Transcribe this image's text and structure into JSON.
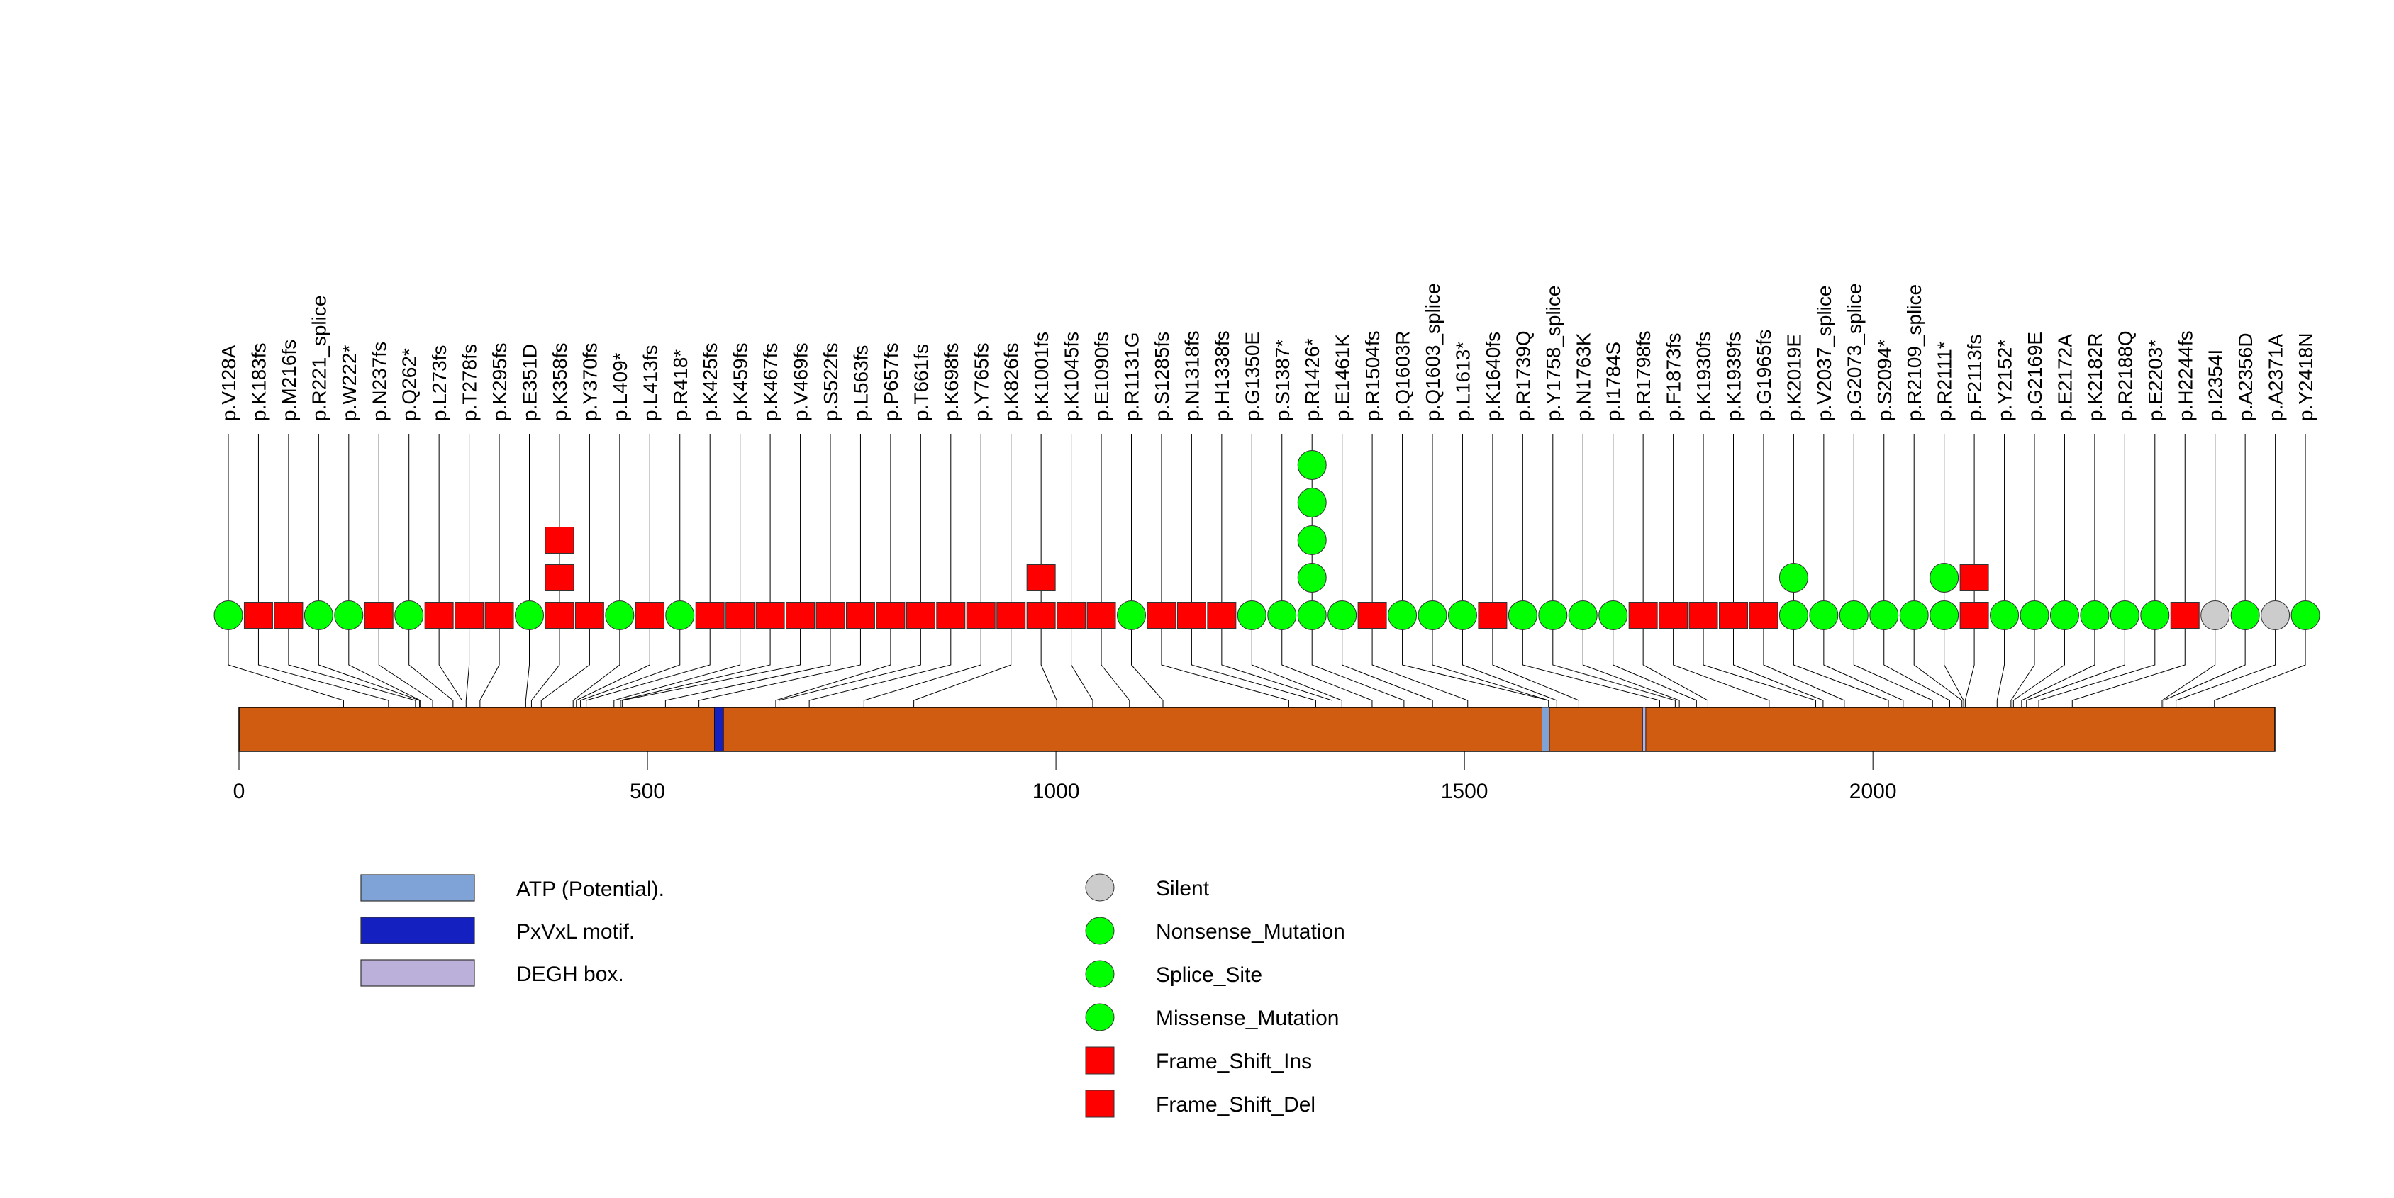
{
  "chart_data": {
    "type": "lollipop",
    "title": "",
    "protein_length": 2492,
    "xlim": [
      0,
      2492
    ],
    "x_ticks": [
      0,
      500,
      1000,
      1500,
      2000
    ],
    "x_tick_labels": [
      "0",
      "500",
      "1000",
      "1500",
      "2000"
    ],
    "domains": [
      {
        "name": "PxVxL motif.",
        "start": 582,
        "end": 593,
        "color": "#1520C0"
      },
      {
        "name": "ATP (Potential).",
        "start": 1595,
        "end": 1604,
        "color": "#7FA3D6"
      },
      {
        "name": "DEGH box.",
        "start": 1718,
        "end": 1722,
        "color": "#BBB0DA"
      }
    ],
    "protein_color": "#D05C12",
    "mutation_types": {
      "Silent": {
        "shape": "circle",
        "color": "#CCCCCC"
      },
      "Nonsense_Mutation": {
        "shape": "circle",
        "color": "#00FF00"
      },
      "Splice_Site": {
        "shape": "circle",
        "color": "#00FF00"
      },
      "Missense_Mutation": {
        "shape": "circle",
        "color": "#00FF00"
      },
      "Frame_Shift_Ins": {
        "shape": "square",
        "color": "#FF0000"
      },
      "Frame_Shift_Del": {
        "shape": "square",
        "color": "#FF0000"
      }
    },
    "mutations": [
      {
        "label": "p.V128A",
        "pos": 128,
        "type": "Missense_Mutation",
        "count": 1
      },
      {
        "label": "p.K183fs",
        "pos": 183,
        "type": "Frame_Shift_Del",
        "count": 1
      },
      {
        "label": "p.M216fs",
        "pos": 216,
        "type": "Frame_Shift_Del",
        "count": 1
      },
      {
        "label": "p.R221_splice",
        "pos": 221,
        "type": "Splice_Site",
        "count": 1
      },
      {
        "label": "p.W222*",
        "pos": 222,
        "type": "Nonsense_Mutation",
        "count": 1
      },
      {
        "label": "p.N237fs",
        "pos": 237,
        "type": "Frame_Shift_Del",
        "count": 1
      },
      {
        "label": "p.Q262*",
        "pos": 262,
        "type": "Nonsense_Mutation",
        "count": 1
      },
      {
        "label": "p.L273fs",
        "pos": 273,
        "type": "Frame_Shift_Del",
        "count": 1
      },
      {
        "label": "p.T278fs",
        "pos": 278,
        "type": "Frame_Shift_Del",
        "count": 1
      },
      {
        "label": "p.K295fs",
        "pos": 295,
        "type": "Frame_Shift_Del",
        "count": 1
      },
      {
        "label": "p.E351D",
        "pos": 351,
        "type": "Missense_Mutation",
        "count": 1
      },
      {
        "label": "p.K358fs",
        "pos": 358,
        "type": "Frame_Shift_Del",
        "count": 3
      },
      {
        "label": "p.Y370fs",
        "pos": 370,
        "type": "Frame_Shift_Del",
        "count": 1
      },
      {
        "label": "p.L409*",
        "pos": 409,
        "type": "Nonsense_Mutation",
        "count": 1
      },
      {
        "label": "p.L413fs",
        "pos": 413,
        "type": "Frame_Shift_Del",
        "count": 1
      },
      {
        "label": "p.R418*",
        "pos": 418,
        "type": "Nonsense_Mutation",
        "count": 1
      },
      {
        "label": "p.K425fs",
        "pos": 425,
        "type": "Frame_Shift_Del",
        "count": 1
      },
      {
        "label": "p.K459fs",
        "pos": 459,
        "type": "Frame_Shift_Del",
        "count": 1
      },
      {
        "label": "p.K467fs",
        "pos": 467,
        "type": "Frame_Shift_Del",
        "count": 1
      },
      {
        "label": "p.V469fs",
        "pos": 469,
        "type": "Frame_Shift_Del",
        "count": 1
      },
      {
        "label": "p.S522fs",
        "pos": 522,
        "type": "Frame_Shift_Del",
        "count": 1
      },
      {
        "label": "p.L563fs",
        "pos": 563,
        "type": "Frame_Shift_Del",
        "count": 1
      },
      {
        "label": "p.P657fs",
        "pos": 657,
        "type": "Frame_Shift_Del",
        "count": 1
      },
      {
        "label": "p.T661fs",
        "pos": 661,
        "type": "Frame_Shift_Del",
        "count": 1
      },
      {
        "label": "p.K698fs",
        "pos": 698,
        "type": "Frame_Shift_Del",
        "count": 1
      },
      {
        "label": "p.Y765fs",
        "pos": 765,
        "type": "Frame_Shift_Del",
        "count": 1
      },
      {
        "label": "p.K826fs",
        "pos": 826,
        "type": "Frame_Shift_Del",
        "count": 1
      },
      {
        "label": "p.K1001fs",
        "pos": 1001,
        "type": "Frame_Shift_Del",
        "count": 2
      },
      {
        "label": "p.K1045fs",
        "pos": 1045,
        "type": "Frame_Shift_Del",
        "count": 1
      },
      {
        "label": "p.E1090fs",
        "pos": 1090,
        "type": "Frame_Shift_Del",
        "count": 1
      },
      {
        "label": "p.R1131G",
        "pos": 1131,
        "type": "Missense_Mutation",
        "count": 1
      },
      {
        "label": "p.S1285fs",
        "pos": 1285,
        "type": "Frame_Shift_Del",
        "count": 1
      },
      {
        "label": "p.N1318fs",
        "pos": 1318,
        "type": "Frame_Shift_Del",
        "count": 1
      },
      {
        "label": "p.H1338fs",
        "pos": 1338,
        "type": "Frame_Shift_Del",
        "count": 1
      },
      {
        "label": "p.G1350E",
        "pos": 1350,
        "type": "Missense_Mutation",
        "count": 1
      },
      {
        "label": "p.S1387*",
        "pos": 1387,
        "type": "Nonsense_Mutation",
        "count": 1
      },
      {
        "label": "p.R1426*",
        "pos": 1426,
        "type": "Nonsense_Mutation",
        "count": 5
      },
      {
        "label": "p.E1461K",
        "pos": 1461,
        "type": "Missense_Mutation",
        "count": 1
      },
      {
        "label": "p.R1504fs",
        "pos": 1504,
        "type": "Frame_Shift_Del",
        "count": 1
      },
      {
        "label": "p.Q1603R",
        "pos": 1603,
        "type": "Missense_Mutation",
        "count": 1
      },
      {
        "label": "p.Q1603_splice",
        "pos": 1603,
        "type": "Splice_Site",
        "count": 1
      },
      {
        "label": "p.L1613*",
        "pos": 1613,
        "type": "Nonsense_Mutation",
        "count": 1
      },
      {
        "label": "p.K1640fs",
        "pos": 1640,
        "type": "Frame_Shift_Del",
        "count": 1
      },
      {
        "label": "p.R1739Q",
        "pos": 1739,
        "type": "Missense_Mutation",
        "count": 1
      },
      {
        "label": "p.Y1758_splice",
        "pos": 1758,
        "type": "Splice_Site",
        "count": 1
      },
      {
        "label": "p.N1763K",
        "pos": 1763,
        "type": "Missense_Mutation",
        "count": 1
      },
      {
        "label": "p.I1784S",
        "pos": 1784,
        "type": "Missense_Mutation",
        "count": 1
      },
      {
        "label": "p.R1798fs",
        "pos": 1798,
        "type": "Frame_Shift_Del",
        "count": 1
      },
      {
        "label": "p.F1873fs",
        "pos": 1873,
        "type": "Frame_Shift_Del",
        "count": 1
      },
      {
        "label": "p.K1930fs",
        "pos": 1930,
        "type": "Frame_Shift_Del",
        "count": 1
      },
      {
        "label": "p.K1939fs",
        "pos": 1939,
        "type": "Frame_Shift_Del",
        "count": 1
      },
      {
        "label": "p.G1965fs",
        "pos": 1965,
        "type": "Frame_Shift_Del",
        "count": 1
      },
      {
        "label": "p.K2019E",
        "pos": 2019,
        "type": "Missense_Mutation",
        "count": 2
      },
      {
        "label": "p.V2037_splice",
        "pos": 2037,
        "type": "Splice_Site",
        "count": 1
      },
      {
        "label": "p.G2073_splice",
        "pos": 2073,
        "type": "Splice_Site",
        "count": 1
      },
      {
        "label": "p.S2094*",
        "pos": 2094,
        "type": "Nonsense_Mutation",
        "count": 1
      },
      {
        "label": "p.R2109_splice",
        "pos": 2109,
        "type": "Splice_Site",
        "count": 1
      },
      {
        "label": "p.R2111*",
        "pos": 2111,
        "type": "Nonsense_Mutation",
        "count": 2
      },
      {
        "label": "p.F2113fs",
        "pos": 2113,
        "type": "Frame_Shift_Del",
        "count": 2
      },
      {
        "label": "p.Y2152*",
        "pos": 2152,
        "type": "Nonsense_Mutation",
        "count": 1
      },
      {
        "label": "p.G2169E",
        "pos": 2169,
        "type": "Missense_Mutation",
        "count": 1
      },
      {
        "label": "p.E2172A",
        "pos": 2172,
        "type": "Missense_Mutation",
        "count": 1
      },
      {
        "label": "p.K2182R",
        "pos": 2182,
        "type": "Missense_Mutation",
        "count": 1
      },
      {
        "label": "p.R2188Q",
        "pos": 2188,
        "type": "Missense_Mutation",
        "count": 1
      },
      {
        "label": "p.E2203*",
        "pos": 2203,
        "type": "Nonsense_Mutation",
        "count": 1
      },
      {
        "label": "p.H2244fs",
        "pos": 2244,
        "type": "Frame_Shift_Del",
        "count": 1
      },
      {
        "label": "p.I2354I",
        "pos": 2354,
        "type": "Silent",
        "count": 1
      },
      {
        "label": "p.A2356D",
        "pos": 2356,
        "type": "Missense_Mutation",
        "count": 1
      },
      {
        "label": "p.A2371A",
        "pos": 2371,
        "type": "Silent",
        "count": 1
      },
      {
        "label": "p.Y2418N",
        "pos": 2418,
        "type": "Missense_Mutation",
        "count": 1
      }
    ],
    "legend_domains": [
      {
        "label": "ATP (Potential).",
        "color": "#7FA3D6"
      },
      {
        "label": "PxVxL motif.",
        "color": "#1520C0"
      },
      {
        "label": "DEGH box.",
        "color": "#BBB0DA"
      }
    ],
    "legend_mutations": [
      {
        "label": "Silent",
        "shape": "circle",
        "color": "#CCCCCC"
      },
      {
        "label": "Nonsense_Mutation",
        "shape": "circle",
        "color": "#00FF00"
      },
      {
        "label": "Splice_Site",
        "shape": "circle",
        "color": "#00FF00"
      },
      {
        "label": "Missense_Mutation",
        "shape": "circle",
        "color": "#00FF00"
      },
      {
        "label": "Frame_Shift_Ins",
        "shape": "square",
        "color": "#FF0000"
      },
      {
        "label": "Frame_Shift_Del",
        "shape": "square",
        "color": "#FF0000"
      }
    ]
  }
}
